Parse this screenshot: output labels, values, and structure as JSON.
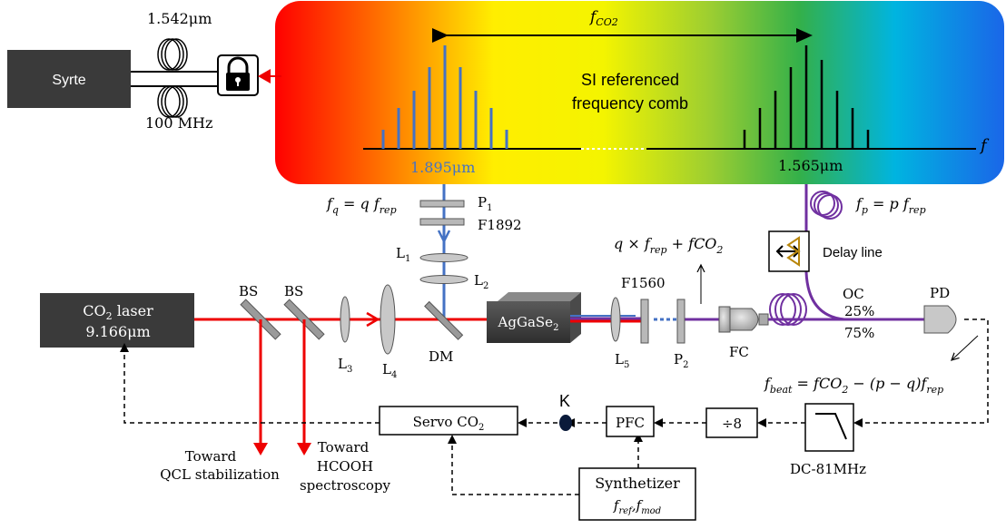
{
  "source": {
    "name": "Syrte",
    "wavelength": "1.542μm",
    "rate": "100 MHz"
  },
  "comb": {
    "title_line1": "SI referenced",
    "title_line2": "frequency comb",
    "fco2": "f",
    "fco2_sub": "CO2",
    "axis_f": "f",
    "left_wavelength": "1.895μm",
    "right_wavelength": "1.565μm"
  },
  "eqs": {
    "fq": [
      "f",
      "q",
      " = q f",
      "rep"
    ],
    "fp": [
      "f",
      "p",
      " = p f",
      "rep"
    ],
    "sum": [
      "q × f",
      "rep",
      " + fCO",
      "2"
    ],
    "beat": [
      "f",
      "beat",
      " = fCO",
      "2",
      " − (p − q)f",
      "rep"
    ]
  },
  "components": {
    "p1": [
      "P",
      "1"
    ],
    "f1892": "F1892",
    "l1": [
      "L",
      "1"
    ],
    "l2": [
      "L",
      "2"
    ],
    "l3": [
      "L",
      "3"
    ],
    "l4": [
      "L",
      "4"
    ],
    "l5": [
      "L",
      "5"
    ],
    "p2": [
      "P",
      "2"
    ],
    "bs1": "BS",
    "bs2": "BS",
    "dm": "DM",
    "crystal": [
      "AgGaSe",
      "2"
    ],
    "f1560": "F1560",
    "fc": "FC",
    "oc": "OC",
    "oc25": "25%",
    "oc75": "75%",
    "pd": "PD",
    "delay": "Delay line"
  },
  "co2_laser": {
    "line1": [
      "CO",
      "2",
      " laser"
    ],
    "line2": "9.166μm"
  },
  "electronics": {
    "servo": [
      "Servo CO",
      "2"
    ],
    "pfc": "PFC",
    "div": "÷8",
    "filter": "DC-81MHz",
    "synth_line1": "Synthetizer",
    "synth_line2": [
      "f",
      "ref",
      ",f",
      "mod"
    ],
    "k": "K"
  },
  "outputs": {
    "qcl1": "Toward",
    "qcl2": "QCL stabilization",
    "hcooh1": "Toward",
    "hcooh2": "HCOOH",
    "hcooh3": "spectroscopy"
  },
  "colors": {
    "laser": "#ee0000",
    "blue": "#4472c4",
    "purple": "#7030a0",
    "dark_box": "#3a3a3a"
  }
}
